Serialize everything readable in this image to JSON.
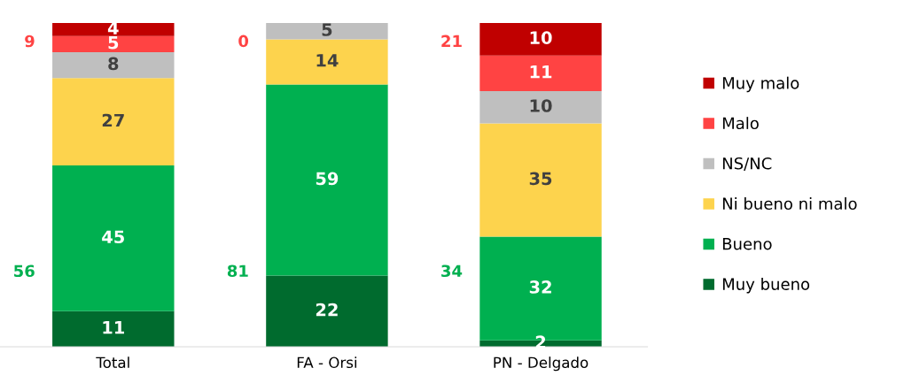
{
  "chart_data": {
    "type": "bar",
    "stacked": true,
    "categories": [
      "Total",
      "FA - Orsi",
      "PN - Delgado"
    ],
    "series": [
      {
        "name": "Muy bueno",
        "color": "#006b2e",
        "values": [
          11,
          22,
          2
        ],
        "value_labels": [
          "11",
          "22",
          "2"
        ]
      },
      {
        "name": "Bueno",
        "color": "#00b050",
        "values": [
          45,
          59,
          32
        ],
        "value_labels": [
          "45",
          "59",
          "32"
        ]
      },
      {
        "name": "Ni bueno ni malo",
        "color": "#fdd34d",
        "values": [
          27,
          14,
          35
        ],
        "value_labels": [
          "27",
          "14",
          "35"
        ]
      },
      {
        "name": "NS/NC",
        "color": "#bfbfbf",
        "values": [
          8,
          5,
          10
        ],
        "value_labels": [
          "8",
          "5",
          "10"
        ]
      },
      {
        "name": "Malo",
        "color": "#ff4343",
        "values": [
          5,
          0,
          11
        ],
        "value_labels": [
          "5",
          null,
          "11"
        ]
      },
      {
        "name": "Muy malo",
        "color": "#c00000",
        "values": [
          4,
          0,
          10
        ],
        "value_labels": [
          "4",
          null,
          "10"
        ]
      }
    ],
    "annotations": [
      "9",
      "0",
      "21",
      "56",
      "81",
      "34"
    ],
    "legend": "right",
    "marker": "square",
    "grid": false
  }
}
